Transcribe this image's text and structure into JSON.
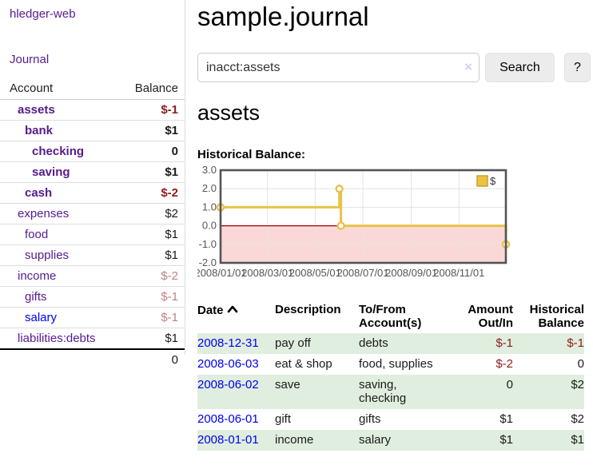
{
  "sidebar": {
    "brand": "hledger-web",
    "nav": [
      {
        "label": "Journal"
      }
    ],
    "accounts_table": {
      "headers": {
        "account": "Account",
        "balance": "Balance"
      },
      "rows": [
        {
          "name": "assets",
          "indent": 1,
          "bold": true,
          "balance": "$-1",
          "balance_style": "neg"
        },
        {
          "name": "bank",
          "indent": 2,
          "bold": true,
          "balance": "$1",
          "balance_style": ""
        },
        {
          "name": "checking",
          "indent": 3,
          "bold": true,
          "balance": "0",
          "balance_style": ""
        },
        {
          "name": "saving",
          "indent": 3,
          "bold": true,
          "balance": "$1",
          "balance_style": ""
        },
        {
          "name": "cash",
          "indent": 2,
          "bold": true,
          "balance": "$-2",
          "balance_style": "neg"
        },
        {
          "name": "expenses",
          "indent": 1,
          "bold": false,
          "balance": "$2",
          "balance_style": ""
        },
        {
          "name": "food",
          "indent": 2,
          "bold": false,
          "balance": "$1",
          "balance_style": ""
        },
        {
          "name": "supplies",
          "indent": 2,
          "bold": false,
          "balance": "$1",
          "balance_style": ""
        },
        {
          "name": "income",
          "indent": 1,
          "bold": false,
          "balance": "$-2",
          "balance_style": "negmuted"
        },
        {
          "name": "gifts",
          "indent": 2,
          "bold": false,
          "balance": "$-1",
          "balance_style": "negmuted"
        },
        {
          "name": "salary",
          "indent": 2,
          "bold": false,
          "balance": "$-1",
          "balance_style": "negmuted",
          "link_style": "unvisited"
        },
        {
          "name": "liabilities:debts",
          "indent": 1,
          "bold": false,
          "balance": "$1",
          "balance_style": ""
        }
      ],
      "total": "0"
    }
  },
  "header": {
    "title": "sample.journal"
  },
  "search": {
    "query": "inacct:assets",
    "clear_icon": "×",
    "button_label": "Search",
    "help_label": "?"
  },
  "account_page": {
    "heading": "assets",
    "chart_title": "Historical Balance:"
  },
  "chart_data": {
    "type": "line",
    "step": "after",
    "title": "Historical Balance",
    "series": [
      {
        "name": "$",
        "points": [
          {
            "date": "2008-01-01",
            "value": 1,
            "t": 0.0
          },
          {
            "date": "2008-06-01",
            "value": 2,
            "t": 0.4164
          },
          {
            "date": "2008-06-03",
            "value": 0,
            "t": 0.4219
          },
          {
            "date": "2008-12-31",
            "value": -1,
            "t": 1.0
          }
        ]
      }
    ],
    "x_ticks": [
      {
        "label": "2008/01/01",
        "t": 0.0
      },
      {
        "label": "2008/03/01",
        "t": 0.1644
      },
      {
        "label": "2008/05/01",
        "t": 0.3315
      },
      {
        "label": "2008/07/01",
        "t": 0.4986
      },
      {
        "label": "2008/09/01",
        "t": 0.6685
      },
      {
        "label": "2008/11/01",
        "t": 0.8356
      }
    ],
    "y_ticks": [
      "3.0",
      "2.0",
      "1.0",
      "0.0",
      "-1.0",
      "-2.0"
    ],
    "ylim": [
      -2,
      3
    ],
    "grid": true,
    "legend_position": "top-right",
    "colors": {
      "line": "#e8c24a",
      "marker_fill": "#ffffff",
      "legend_fill": "#edc240",
      "legend_border": "#c7a22a",
      "negative_region": "#fbd8d8",
      "zero_line": "#a40000",
      "grid": "#e3e3e3",
      "border": "#545454",
      "tick_text": "#555555"
    }
  },
  "register_table": {
    "headers": {
      "date": "Date",
      "description": "Description",
      "accounts": "To/From Account(s)",
      "amount": "Amount Out/In",
      "balance": "Historical Balance"
    },
    "sort_icon": "chevron-up",
    "rows": [
      {
        "date": "2008-12-31",
        "description": "pay off",
        "accounts": "debts",
        "amount": "$-1",
        "amount_neg": true,
        "balance": "$-1",
        "balance_neg": true,
        "stripe": true
      },
      {
        "date": "2008-06-03",
        "description": "eat & shop",
        "accounts": "food, supplies",
        "amount": "$-2",
        "amount_neg": true,
        "balance": "0",
        "balance_neg": false,
        "stripe": false
      },
      {
        "date": "2008-06-02",
        "description": "save",
        "accounts": "saving, checking",
        "amount": "0",
        "amount_neg": false,
        "balance": "$2",
        "balance_neg": false,
        "stripe": true
      },
      {
        "date": "2008-06-01",
        "description": "gift",
        "accounts": "gifts",
        "amount": "$1",
        "amount_neg": false,
        "balance": "$2",
        "balance_neg": false,
        "stripe": false
      },
      {
        "date": "2008-01-01",
        "description": "income",
        "accounts": "salary",
        "amount": "$1",
        "amount_neg": false,
        "balance": "$1",
        "balance_neg": false,
        "stripe": true
      }
    ]
  },
  "colors": {
    "link_purple": "#551b8c",
    "link_blue": "#0000ee",
    "negative_strong": "#8f1b1b",
    "negative_muted": "#c28383",
    "row_stripe_green": "#dfeede"
  }
}
